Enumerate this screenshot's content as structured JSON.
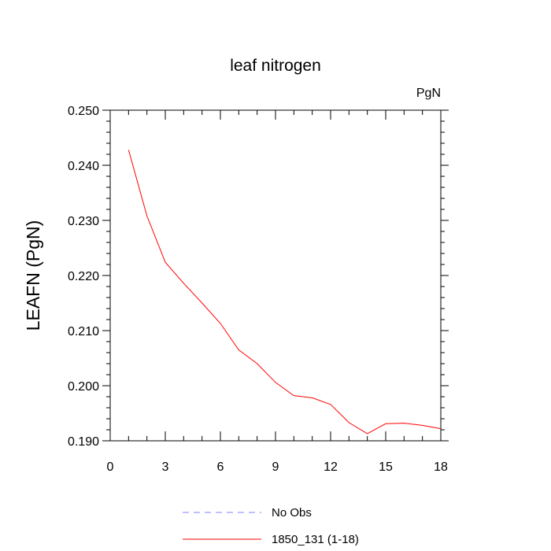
{
  "chart_data": {
    "type": "line",
    "title": "leaf nitrogen",
    "unit_label": "PgN",
    "ylabel": "LEAFN  (PgN)",
    "xlabel": "",
    "xlim": [
      0,
      18
    ],
    "ylim": [
      0.19,
      0.25
    ],
    "x_ticks": [
      0,
      3,
      6,
      9,
      12,
      15,
      18
    ],
    "x_tick_labels": [
      "0",
      "3",
      "6",
      "9",
      "12",
      "15",
      "18"
    ],
    "y_ticks": [
      0.19,
      0.2,
      0.21,
      0.22,
      0.23,
      0.24,
      0.25
    ],
    "y_tick_labels": [
      "0.190",
      "0.200",
      "0.210",
      "0.220",
      "0.230",
      "0.240",
      "0.250"
    ],
    "grid": false,
    "legend_position": "bottom",
    "series": [
      {
        "name": "No Obs",
        "color": "#8080ff",
        "style": "dashed",
        "x": [],
        "y": []
      },
      {
        "name": "1850_131 (1-18)",
        "color": "#ff0000",
        "style": "solid",
        "x": [
          1,
          2,
          3,
          4,
          5,
          6,
          7,
          8,
          9,
          10,
          11,
          12,
          13,
          14,
          15,
          16,
          17,
          18
        ],
        "y": [
          0.2428,
          0.2308,
          0.2224,
          0.2186,
          0.215,
          0.2113,
          0.2065,
          0.204,
          0.2006,
          0.1982,
          0.1978,
          0.1966,
          0.1933,
          0.1913,
          0.1931,
          0.1932,
          0.1928,
          0.1922
        ]
      }
    ]
  }
}
